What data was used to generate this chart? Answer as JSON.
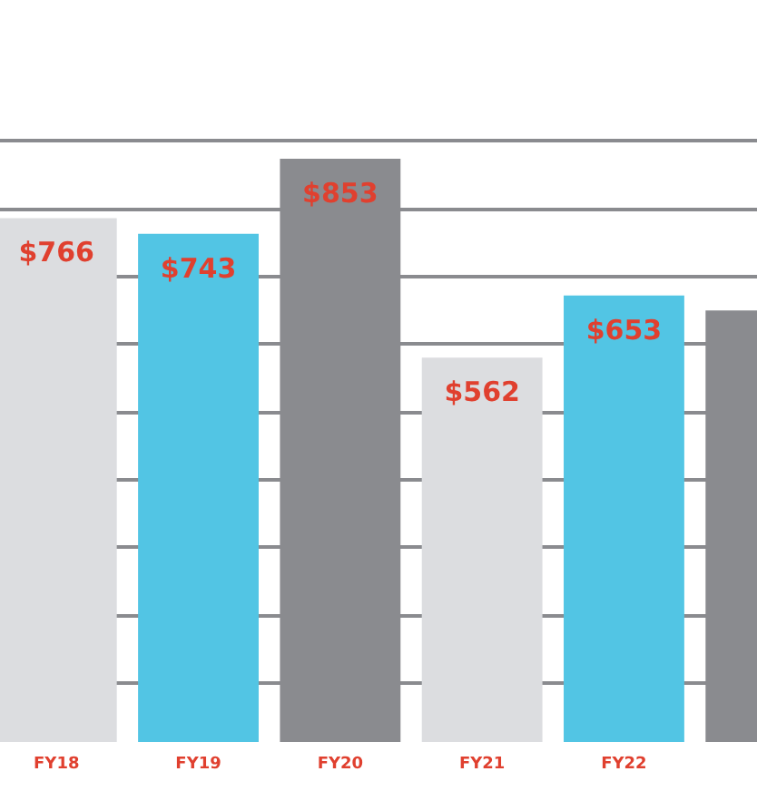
{
  "chart_data": {
    "type": "bar",
    "categories": [
      "FY18",
      "FY19",
      "FY20",
      "FY21",
      "FY22",
      null
    ],
    "values": [
      766,
      743,
      853,
      562,
      653,
      631
    ],
    "colors": [
      "#dcdde0",
      "#52c5e4",
      "#8a8b8f",
      "#dcdde0",
      "#52c5e4",
      "#8a8b8f"
    ],
    "value_labels": [
      "$766",
      "$743",
      "$853",
      "$562",
      "$653",
      null
    ],
    "ylim": [
      0,
      1085
    ],
    "yticks": [
      {
        "value": 88,
        "label": null
      },
      {
        "value": 187,
        "label": null
      },
      {
        "value": 286,
        "label": null
      },
      {
        "value": 385,
        "label": null
      },
      {
        "value": 484,
        "label": null
      },
      {
        "value": 583,
        "label": null
      },
      {
        "value": 682,
        "label": null
      },
      {
        "value": 781,
        "label": null
      },
      {
        "value": 880,
        "label": null
      }
    ],
    "grid": "y"
  }
}
